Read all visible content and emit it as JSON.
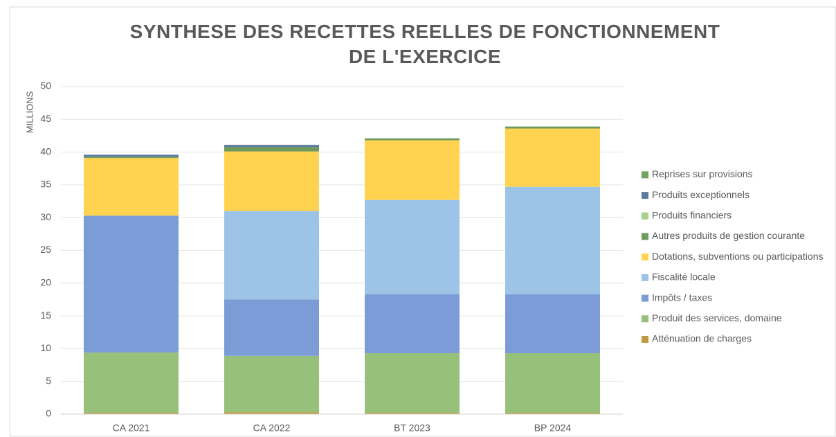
{
  "chart_data": {
    "type": "stacked_bar",
    "title": "SYNTHESE DES RECETTES REELLES DE FONCTIONNEMENT DE L'EXERCICE",
    "y_label": "MILLIONS",
    "categories": [
      "CA 2021",
      "CA 2022",
      "BT 2023",
      "BP 2024"
    ],
    "series": [
      {
        "name": "Atténuation de charges",
        "color": "#bf9b3f",
        "values": [
          0.2,
          0.3,
          0.2,
          0.2
        ]
      },
      {
        "name": "Produit des services, domaine",
        "color": "#97c17a",
        "values": [
          9.2,
          8.6,
          9.1,
          9.1
        ]
      },
      {
        "name": "Impôts / taxes",
        "color": "#7b9cd6",
        "values": [
          20.9,
          8.6,
          9.0,
          9.0
        ]
      },
      {
        "name": "Fiscalité locale",
        "color": "#9dc3e6",
        "values": [
          0,
          13.5,
          14.4,
          16.4
        ]
      },
      {
        "name": "Dotations, subventions ou participations",
        "color": "#ffd34f",
        "values": [
          8.8,
          9.1,
          9.1,
          8.9
        ]
      },
      {
        "name": "Autres produits de gestion courante",
        "color": "#6f9a5c",
        "values": [
          0.2,
          0.7,
          0.3,
          0.3
        ]
      },
      {
        "name": "Produits financiers",
        "color": "#a9d18e",
        "values": [
          0,
          0,
          0,
          0
        ]
      },
      {
        "name": "Produits exceptionnels",
        "color": "#5b7aa0",
        "values": [
          0.3,
          0.3,
          0,
          0
        ]
      },
      {
        "name": "Reprises sur provisions",
        "color": "#72a25e",
        "values": [
          0,
          0,
          0,
          0
        ]
      }
    ],
    "ylim": [
      0,
      50
    ],
    "yticks": [
      0,
      5,
      10,
      15,
      20,
      25,
      30,
      35,
      40,
      45,
      50
    ],
    "grid": true,
    "legend": "right"
  }
}
